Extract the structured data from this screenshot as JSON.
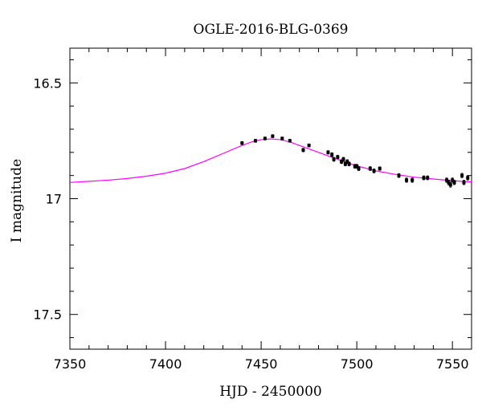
{
  "chart_data": {
    "type": "scatter",
    "title": "OGLE-2016-BLG-0369",
    "xlabel": "HJD - 2450000",
    "ylabel": "I magnitude",
    "xlim": [
      7350,
      7560
    ],
    "ylim": [
      17.65,
      16.35
    ],
    "y_inverted": true,
    "x_ticks": [
      7350,
      7400,
      7450,
      7500,
      7550
    ],
    "y_ticks": [
      16.5,
      17,
      17.5
    ],
    "x_tick_labels": [
      "7350",
      "7400",
      "7450",
      "7500",
      "7550"
    ],
    "y_tick_labels": [
      "16.5",
      "17",
      "17.5"
    ],
    "grid": false,
    "colors": {
      "model": "#ff00ff",
      "points": "#000000"
    },
    "series": [
      {
        "type": "scatter",
        "x": [
          7440,
          7447,
          7452,
          7456,
          7461,
          7465,
          7472,
          7475,
          7485,
          7487,
          7488,
          7490,
          7492,
          7493,
          7494,
          7495,
          7496,
          7499,
          7500,
          7501,
          7507,
          7509,
          7512,
          7522,
          7526,
          7529,
          7535,
          7537,
          7547,
          7548,
          7549,
          7550,
          7551,
          7555,
          7556,
          7558
        ],
        "y": [
          16.76,
          16.75,
          16.74,
          16.73,
          16.74,
          16.75,
          16.79,
          16.77,
          16.8,
          16.81,
          16.83,
          16.82,
          16.84,
          16.83,
          16.85,
          16.84,
          16.85,
          16.86,
          16.86,
          16.87,
          16.87,
          16.88,
          16.87,
          16.9,
          16.92,
          16.92,
          16.91,
          16.91,
          16.92,
          16.93,
          16.94,
          16.92,
          16.93,
          16.9,
          16.93,
          16.91
        ],
        "yerr": [
          0.006,
          0.006,
          0.006,
          0.006,
          0.006,
          0.006,
          0.007,
          0.006,
          0.007,
          0.008,
          0.008,
          0.007,
          0.008,
          0.008,
          0.008,
          0.008,
          0.008,
          0.008,
          0.008,
          0.008,
          0.008,
          0.008,
          0.007,
          0.008,
          0.009,
          0.009,
          0.008,
          0.008,
          0.009,
          0.01,
          0.01,
          0.009,
          0.009,
          0.009,
          0.009,
          0.009
        ]
      },
      {
        "type": "line",
        "x": [
          7350,
          7360,
          7370,
          7380,
          7390,
          7400,
          7410,
          7420,
          7430,
          7440,
          7445,
          7450,
          7455,
          7460,
          7465,
          7470,
          7475,
          7480,
          7485,
          7490,
          7495,
          7500,
          7510,
          7520,
          7530,
          7540,
          7550,
          7560
        ],
        "y": [
          16.93,
          16.925,
          16.92,
          16.913,
          16.903,
          16.89,
          16.87,
          16.84,
          16.805,
          16.77,
          16.755,
          16.745,
          16.742,
          16.745,
          16.755,
          16.77,
          16.785,
          16.8,
          16.815,
          16.83,
          16.845,
          16.858,
          16.88,
          16.895,
          16.907,
          16.915,
          16.922,
          16.928
        ]
      }
    ]
  }
}
